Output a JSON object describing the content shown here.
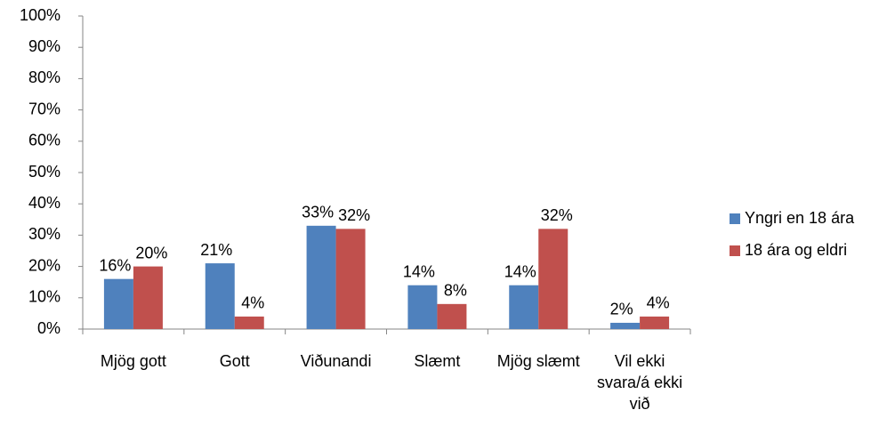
{
  "chart_data": {
    "type": "bar",
    "categories": [
      "Mjög gott",
      "Gott",
      "Viðunandi",
      "Slæmt",
      "Mjög slæmt",
      "Vil ekki svara/á ekki við"
    ],
    "series": [
      {
        "name": "Yngri en 18 ára",
        "color": "#4f81bd",
        "values": [
          16,
          21,
          33,
          14,
          14,
          2
        ],
        "value_labels": [
          "16%",
          "21%",
          "33%",
          "14%",
          "14%",
          "2%"
        ]
      },
      {
        "name": "18 ára og eldri",
        "color": "#c0504d",
        "values": [
          20,
          4,
          32,
          8,
          32,
          4
        ],
        "value_labels": [
          "20%",
          "4%",
          "32%",
          "8%",
          "32%",
          "4%"
        ]
      }
    ],
    "ylim": [
      0,
      100
    ],
    "yticks": [
      {
        "value": 0,
        "label": "0%"
      },
      {
        "value": 10,
        "label": "10%"
      },
      {
        "value": 20,
        "label": "20%"
      },
      {
        "value": 30,
        "label": "30%"
      },
      {
        "value": 40,
        "label": "40%"
      },
      {
        "value": 50,
        "label": "50%"
      },
      {
        "value": 60,
        "label": "60%"
      },
      {
        "value": 70,
        "label": "70%"
      },
      {
        "value": 80,
        "label": "80%"
      },
      {
        "value": 90,
        "label": "90%"
      },
      {
        "value": 100,
        "label": "100%"
      }
    ],
    "grid": false,
    "legend": "right"
  }
}
